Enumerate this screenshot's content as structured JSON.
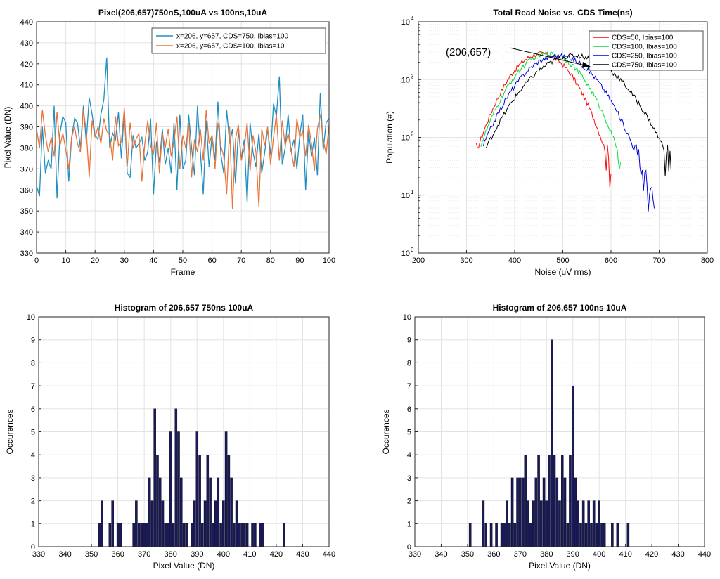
{
  "chart_data": [
    {
      "type": "line",
      "title": "Pixel(206,657)750nS,100uA vs 100ns,10uA",
      "xlabel": "Frame",
      "ylabel": "Pixel Value (DN)",
      "xlim": [
        0,
        100
      ],
      "ylim": [
        330,
        440
      ],
      "xticks": [
        0,
        10,
        20,
        30,
        40,
        50,
        60,
        70,
        80,
        90,
        100
      ],
      "yticks": [
        330,
        340,
        350,
        360,
        370,
        380,
        390,
        400,
        410,
        420,
        430,
        440
      ],
      "grid": true,
      "legend_position": "top-right",
      "series": [
        {
          "name": "x=206, y=657, CDS=750, Ibias=100",
          "color": "#1f8fc0",
          "values": [
            362,
            357,
            390,
            368,
            374,
            370,
            400,
            356,
            387,
            395,
            392,
            364,
            385,
            394,
            392,
            380,
            400,
            383,
            404,
            396,
            386,
            384,
            396,
            403,
            423,
            380,
            387,
            384,
            397,
            375,
            398,
            368,
            366,
            386,
            380,
            382,
            385,
            374,
            378,
            394,
            358,
            383,
            373,
            389,
            372,
            380,
            368,
            392,
            360,
            396,
            370,
            374,
            396,
            380,
            367,
            400,
            378,
            358,
            393,
            371,
            386,
            374,
            402,
            377,
            368,
            398,
            382,
            389,
            363,
            388,
            375,
            384,
            354,
            392,
            378,
            371,
            387,
            368,
            378,
            389,
            377,
            401,
            395,
            414,
            372,
            380,
            396,
            378,
            384,
            370,
            386,
            396,
            360,
            388,
            376,
            385,
            367,
            406,
            379,
            392,
            394
          ]
        },
        {
          "name": "x=206, y=657, CDS=100, Ibias=10",
          "color": "#e8743b",
          "values": [
            389,
            380,
            398,
            386,
            378,
            385,
            376,
            397,
            381,
            387,
            379,
            370,
            385,
            390,
            382,
            378,
            398,
            388,
            366,
            393,
            385,
            390,
            382,
            394,
            388,
            386,
            374,
            395,
            381,
            383,
            399,
            371,
            392,
            380,
            384,
            387,
            364,
            382,
            393,
            381,
            377,
            392,
            368,
            387,
            380,
            389,
            376,
            383,
            395,
            370,
            386,
            380,
            392,
            366,
            384,
            378,
            389,
            374,
            398,
            382,
            386,
            370,
            392,
            381,
            376,
            358,
            390,
            351,
            384,
            391,
            374,
            380,
            392,
            369,
            386,
            378,
            352,
            389,
            381,
            390,
            372,
            385,
            396,
            374,
            393,
            381,
            387,
            379,
            371,
            394,
            385,
            388,
            376,
            391,
            382,
            369,
            389,
            396,
            384,
            377,
            391
          ]
        }
      ]
    },
    {
      "type": "line",
      "title": "Total Read Noise vs. CDS Time(ns)",
      "xlabel": "Noise (uV rms)",
      "ylabel": "Population (#)",
      "xlim": [
        200,
        800
      ],
      "ylim": [
        1,
        10000
      ],
      "yscale": "log",
      "xticks": [
        200,
        300,
        400,
        500,
        600,
        700,
        800
      ],
      "ytick_exponents": [
        0,
        1,
        2,
        3,
        4
      ],
      "grid": true,
      "legend_position": "top-right",
      "annotation": "(206,657)",
      "series": [
        {
          "name": "CDS=50, Ibias=100",
          "color": "#ff0000",
          "center": 455,
          "sigma": 48,
          "peak": 2800,
          "x_range": [
            320,
            600
          ]
        },
        {
          "name": "CDS=100, Ibias=100",
          "color": "#00dd33",
          "center": 470,
          "sigma": 52,
          "peak": 2800,
          "x_range": [
            330,
            620
          ]
        },
        {
          "name": "CDS=250, Ibias=100",
          "color": "#0000dd",
          "center": 490,
          "sigma": 58,
          "peak": 2600,
          "x_range": [
            335,
            690
          ]
        },
        {
          "name": "CDS=750, Ibias=100",
          "color": "#000000",
          "center": 525,
          "sigma": 68,
          "peak": 2600,
          "x_range": [
            340,
            725
          ]
        }
      ]
    },
    {
      "type": "bar",
      "title": "Histogram of 206,657 750ns 100uA",
      "xlabel": "Pixel Value (DN)",
      "ylabel": "Occurences",
      "xlim": [
        330,
        440
      ],
      "ylim": [
        0,
        10
      ],
      "xticks": [
        330,
        340,
        350,
        360,
        370,
        380,
        390,
        400,
        410,
        420,
        430,
        440
      ],
      "yticks": [
        0,
        1,
        2,
        3,
        4,
        5,
        6,
        7,
        8,
        9,
        10
      ],
      "grid": true,
      "bins": [
        {
          "x": 353,
          "count": 1
        },
        {
          "x": 354,
          "count": 2
        },
        {
          "x": 357,
          "count": 1
        },
        {
          "x": 358,
          "count": 2
        },
        {
          "x": 360,
          "count": 1
        },
        {
          "x": 361,
          "count": 1
        },
        {
          "x": 366,
          "count": 1
        },
        {
          "x": 367,
          "count": 2
        },
        {
          "x": 368,
          "count": 1
        },
        {
          "x": 369,
          "count": 1
        },
        {
          "x": 370,
          "count": 1
        },
        {
          "x": 371,
          "count": 1
        },
        {
          "x": 372,
          "count": 3
        },
        {
          "x": 373,
          "count": 2
        },
        {
          "x": 374,
          "count": 6
        },
        {
          "x": 375,
          "count": 4
        },
        {
          "x": 376,
          "count": 3
        },
        {
          "x": 377,
          "count": 2
        },
        {
          "x": 378,
          "count": 1
        },
        {
          "x": 379,
          "count": 1
        },
        {
          "x": 380,
          "count": 5
        },
        {
          "x": 381,
          "count": 1
        },
        {
          "x": 382,
          "count": 6
        },
        {
          "x": 383,
          "count": 5
        },
        {
          "x": 384,
          "count": 3
        },
        {
          "x": 385,
          "count": 1
        },
        {
          "x": 386,
          "count": 1
        },
        {
          "x": 388,
          "count": 1
        },
        {
          "x": 389,
          "count": 2
        },
        {
          "x": 390,
          "count": 5
        },
        {
          "x": 391,
          "count": 4
        },
        {
          "x": 392,
          "count": 1
        },
        {
          "x": 393,
          "count": 2
        },
        {
          "x": 394,
          "count": 4
        },
        {
          "x": 395,
          "count": 3
        },
        {
          "x": 396,
          "count": 1
        },
        {
          "x": 397,
          "count": 2
        },
        {
          "x": 398,
          "count": 3
        },
        {
          "x": 399,
          "count": 1
        },
        {
          "x": 400,
          "count": 2
        },
        {
          "x": 401,
          "count": 5
        },
        {
          "x": 402,
          "count": 4
        },
        {
          "x": 403,
          "count": 3
        },
        {
          "x": 404,
          "count": 1
        },
        {
          "x": 405,
          "count": 2
        },
        {
          "x": 406,
          "count": 1
        },
        {
          "x": 407,
          "count": 1
        },
        {
          "x": 408,
          "count": 1
        },
        {
          "x": 409,
          "count": 1
        },
        {
          "x": 411,
          "count": 1
        },
        {
          "x": 412,
          "count": 1
        },
        {
          "x": 414,
          "count": 1
        },
        {
          "x": 415,
          "count": 1
        },
        {
          "x": 423,
          "count": 1
        }
      ]
    },
    {
      "type": "bar",
      "title": "Histogram of 206,657 100ns 10uA",
      "xlabel": "Pixel Value (DN)",
      "ylabel": "Occurences",
      "xlim": [
        330,
        440
      ],
      "ylim": [
        0,
        10
      ],
      "xticks": [
        330,
        340,
        350,
        360,
        370,
        380,
        390,
        400,
        410,
        420,
        430,
        440
      ],
      "yticks": [
        0,
        1,
        2,
        3,
        4,
        5,
        6,
        7,
        8,
        9,
        10
      ],
      "grid": true,
      "bins": [
        {
          "x": 351,
          "count": 1
        },
        {
          "x": 356,
          "count": 2
        },
        {
          "x": 357,
          "count": 1
        },
        {
          "x": 359,
          "count": 1
        },
        {
          "x": 361,
          "count": 1
        },
        {
          "x": 363,
          "count": 1
        },
        {
          "x": 364,
          "count": 1
        },
        {
          "x": 365,
          "count": 2
        },
        {
          "x": 366,
          "count": 1
        },
        {
          "x": 367,
          "count": 3
        },
        {
          "x": 368,
          "count": 1
        },
        {
          "x": 369,
          "count": 3
        },
        {
          "x": 370,
          "count": 3
        },
        {
          "x": 371,
          "count": 3
        },
        {
          "x": 372,
          "count": 4
        },
        {
          "x": 373,
          "count": 2
        },
        {
          "x": 374,
          "count": 1
        },
        {
          "x": 375,
          "count": 2
        },
        {
          "x": 376,
          "count": 3
        },
        {
          "x": 377,
          "count": 4
        },
        {
          "x": 378,
          "count": 2
        },
        {
          "x": 379,
          "count": 3
        },
        {
          "x": 380,
          "count": 2
        },
        {
          "x": 381,
          "count": 4
        },
        {
          "x": 382,
          "count": 9
        },
        {
          "x": 383,
          "count": 4
        },
        {
          "x": 384,
          "count": 3
        },
        {
          "x": 385,
          "count": 2
        },
        {
          "x": 386,
          "count": 4
        },
        {
          "x": 387,
          "count": 3
        },
        {
          "x": 388,
          "count": 1
        },
        {
          "x": 389,
          "count": 4
        },
        {
          "x": 390,
          "count": 7
        },
        {
          "x": 391,
          "count": 3
        },
        {
          "x": 392,
          "count": 2
        },
        {
          "x": 393,
          "count": 1
        },
        {
          "x": 394,
          "count": 2
        },
        {
          "x": 395,
          "count": 1
        },
        {
          "x": 396,
          "count": 2
        },
        {
          "x": 397,
          "count": 1
        },
        {
          "x": 398,
          "count": 2
        },
        {
          "x": 399,
          "count": 1
        },
        {
          "x": 400,
          "count": 2
        },
        {
          "x": 401,
          "count": 1
        },
        {
          "x": 402,
          "count": 1
        },
        {
          "x": 405,
          "count": 1
        },
        {
          "x": 407,
          "count": 1
        },
        {
          "x": 411,
          "count": 1
        }
      ]
    }
  ]
}
